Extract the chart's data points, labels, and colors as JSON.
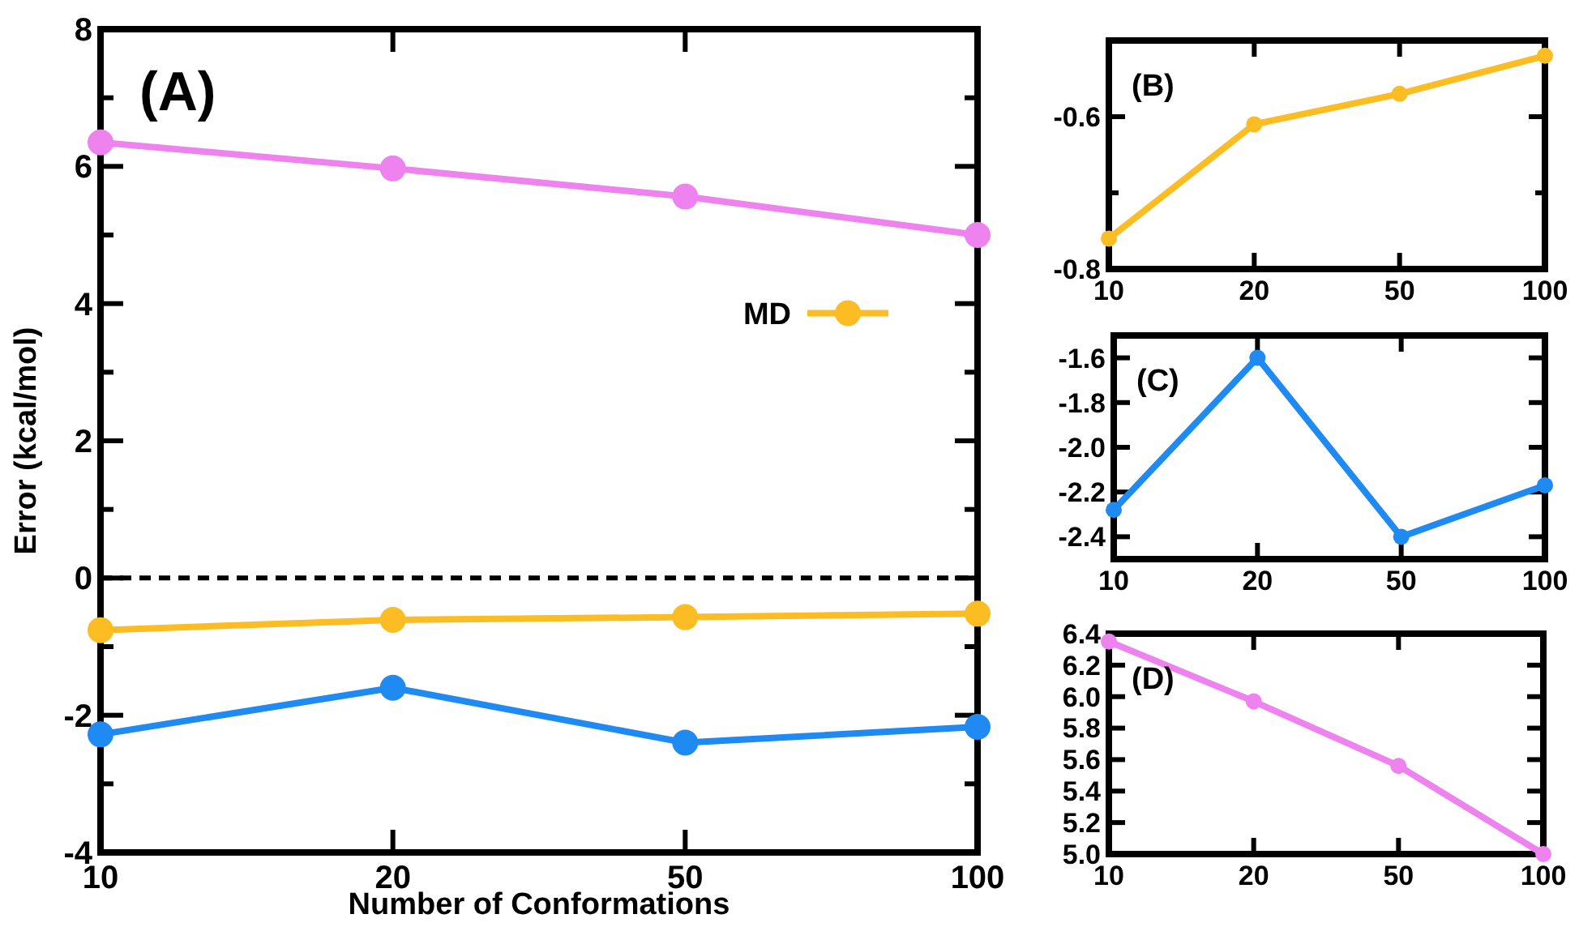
{
  "chart_data": [
    {
      "type": "line",
      "categories": [
        "10",
        "20",
        "50",
        "100"
      ],
      "xlabel": "Number of Conformations",
      "ylabel": "Error (kcal/mol)",
      "ylim": [
        -4,
        8
      ],
      "yticks": [
        -4,
        {
          "value": -3,
          "label": null
        },
        -2,
        {
          "value": -1,
          "label": null
        },
        0,
        {
          "value": 1,
          "label": null
        },
        2,
        {
          "value": 3,
          "label": null
        },
        4,
        {
          "value": 5,
          "label": null
        },
        6,
        {
          "value": 7,
          "label": null
        },
        8
      ],
      "marker": "circle",
      "legend": "right",
      "annotations": [
        "(A)"
      ],
      "ref_lines": [
        {
          "axis": "y",
          "value": 0,
          "color": "#000000",
          "line_style": "dashed"
        }
      ],
      "series": [
        {
          "name": "MD",
          "color": "#fbbc24",
          "values": [
            -0.76,
            -0.61,
            -0.57,
            -0.52
          ]
        },
        {
          "color": "#1f8af2",
          "values": [
            -2.28,
            -1.6,
            -2.4,
            -2.17
          ]
        },
        {
          "color": "#ee82ee",
          "values": [
            6.35,
            5.97,
            5.56,
            5.0
          ]
        }
      ]
    },
    {
      "type": "line",
      "categories": [
        "10",
        "20",
        "50",
        "100"
      ],
      "ylim": [
        -0.8,
        -0.5
      ],
      "yticks": [
        -0.8,
        {
          "value": -0.7,
          "label": null
        },
        -0.6
      ],
      "marker": "circle",
      "annotations": [
        "(B)"
      ],
      "series": [
        {
          "color": "#fbbc24",
          "values": [
            -0.76,
            -0.61,
            -0.57,
            -0.52
          ]
        }
      ]
    },
    {
      "type": "line",
      "categories": [
        "10",
        "20",
        "50",
        "100"
      ],
      "ylim": [
        -2.5,
        -1.5
      ],
      "yticks": [
        -2.4,
        -2.2,
        {
          "value": -2,
          "label": "-2.0"
        },
        -1.8,
        -1.6
      ],
      "marker": "circle",
      "annotations": [
        "(C)"
      ],
      "series": [
        {
          "color": "#1f8af2",
          "values": [
            -2.28,
            -1.6,
            -2.4,
            -2.17
          ]
        }
      ]
    },
    {
      "type": "line",
      "categories": [
        "10",
        "20",
        "50",
        "100"
      ],
      "ylim": [
        5.0,
        6.4
      ],
      "yticks": [
        {
          "value": 5,
          "label": "5.0"
        },
        5.2,
        5.4,
        5.6,
        5.8,
        {
          "value": 6,
          "label": "6.0"
        },
        6.2,
        6.4
      ],
      "marker": "circle",
      "annotations": [
        "(D)"
      ],
      "series": [
        {
          "color": "#ee82ee",
          "values": [
            6.35,
            5.97,
            5.56,
            5.0
          ]
        }
      ]
    }
  ]
}
